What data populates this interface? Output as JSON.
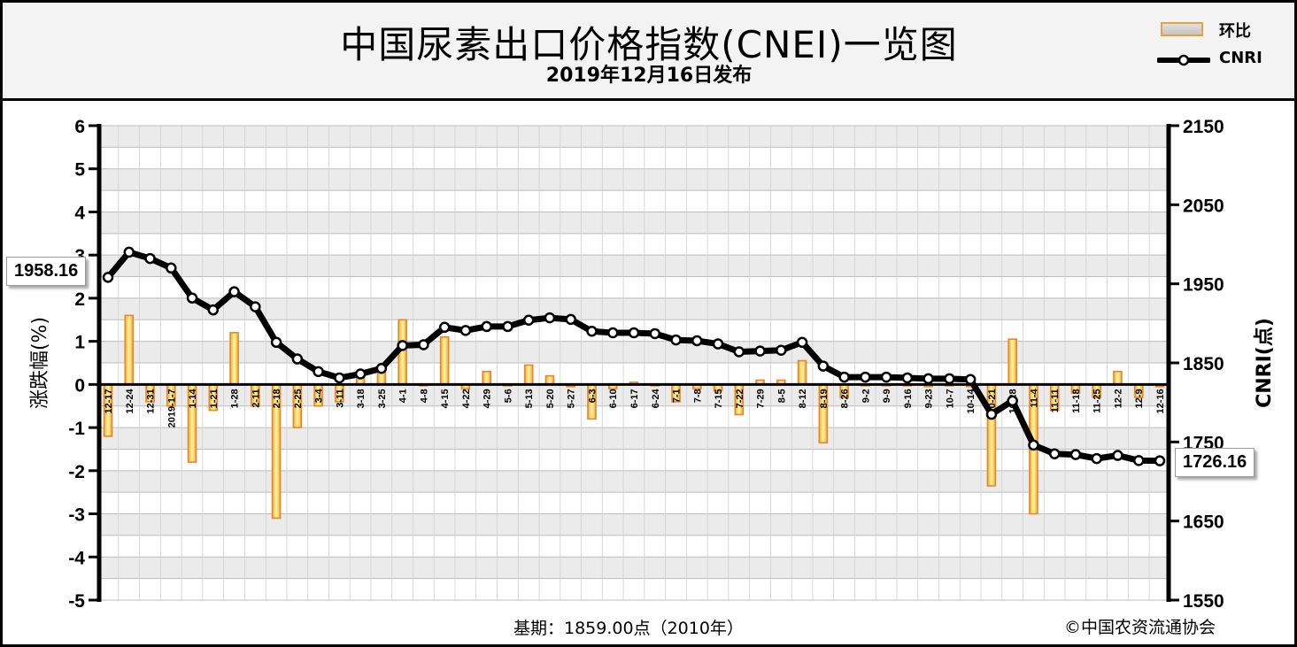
{
  "header": {
    "title": "中国尿素出口价格指数(CNEI)一览图",
    "subtitle": "2019年12月16日发布"
  },
  "legend": {
    "bar_label": "环比",
    "line_label": "CNRI"
  },
  "footer": {
    "base_text": "基期：1859.00点（2010年）",
    "copyright": "©中国农资流通协会"
  },
  "callouts": {
    "start_value": "1958.16",
    "end_value": "1726.16"
  },
  "colors": {
    "bar_border": "#e8862a",
    "bar_fill_top": "#fff3a0",
    "bar_fill_bottom": "#e8b23b",
    "line": "#000000",
    "marker_fill": "#ffffff",
    "grid_band": "#ebebeb"
  },
  "chart_data": {
    "type": "bar+line",
    "ylabel_left": "涨跌幅(%)",
    "ylabel_right": "CNRI(点)",
    "ylim_left": [
      -5,
      6
    ],
    "ylim_right": [
      1550,
      2150
    ],
    "left_ticks": [
      "6",
      "5",
      "4",
      "3",
      "2",
      "1",
      "0",
      "-1",
      "-2",
      "-3",
      "-4",
      "-5"
    ],
    "right_ticks": [
      "2150",
      "2050",
      "1950",
      "1850",
      "1750",
      "1650",
      "1550"
    ],
    "categories": [
      "12-17",
      "12-24",
      "12-31",
      "2019-1-7",
      "1-14",
      "1-21",
      "1-28",
      "2-11",
      "2-18",
      "2-25",
      "3-4",
      "3-11",
      "3-18",
      "3-25",
      "4-1",
      "4-8",
      "4-15",
      "4-22",
      "4-29",
      "5-6",
      "5-13",
      "5-20",
      "5-27",
      "6-3",
      "6-10",
      "6-17",
      "6-24",
      "7-1",
      "7-8",
      "7-15",
      "7-22",
      "7-29",
      "8-5",
      "8-12",
      "8-19",
      "8-26",
      "9-2",
      "9-9",
      "9-16",
      "9-23",
      "10-7",
      "10-14",
      "10-21",
      "10-28",
      "11-4",
      "11-11",
      "11-18",
      "11-25",
      "12-2",
      "12-9",
      "12-16"
    ],
    "series": [
      {
        "name": "环比",
        "type": "bar",
        "axis": "left",
        "values": [
          -1.2,
          1.6,
          -0.4,
          -0.5,
          -1.8,
          -0.6,
          1.2,
          -0.5,
          -3.1,
          -1.0,
          -0.5,
          -0.4,
          0.2,
          0.3,
          1.5,
          0.0,
          1.1,
          -0.1,
          0.3,
          0.0,
          0.45,
          0.2,
          -0.05,
          -0.8,
          -0.1,
          0.05,
          0.0,
          -0.4,
          -0.1,
          -0.15,
          -0.7,
          0.1,
          0.1,
          0.55,
          -1.35,
          -0.3,
          0.0,
          0.0,
          0.0,
          -0.05,
          0.0,
          -0.05,
          -2.35,
          1.05,
          -3.0,
          -0.6,
          -0.2,
          -0.3,
          0.3,
          -0.3,
          -0.05
        ]
      },
      {
        "name": "CNRI",
        "type": "line",
        "axis": "right",
        "values": [
          1958.16,
          1990,
          1982,
          1970,
          1932,
          1917,
          1940,
          1921,
          1876,
          1855,
          1839,
          1831,
          1836,
          1843,
          1872,
          1873,
          1895,
          1891,
          1896,
          1896,
          1904,
          1907,
          1905,
          1890,
          1888,
          1888,
          1887,
          1879,
          1878,
          1874,
          1864,
          1865,
          1866,
          1876,
          1846,
          1832,
          1832,
          1832,
          1831,
          1830,
          1830,
          1829,
          1785,
          1802,
          1746,
          1735,
          1734,
          1729,
          1733,
          1726.5,
          1726.16
        ]
      }
    ]
  }
}
